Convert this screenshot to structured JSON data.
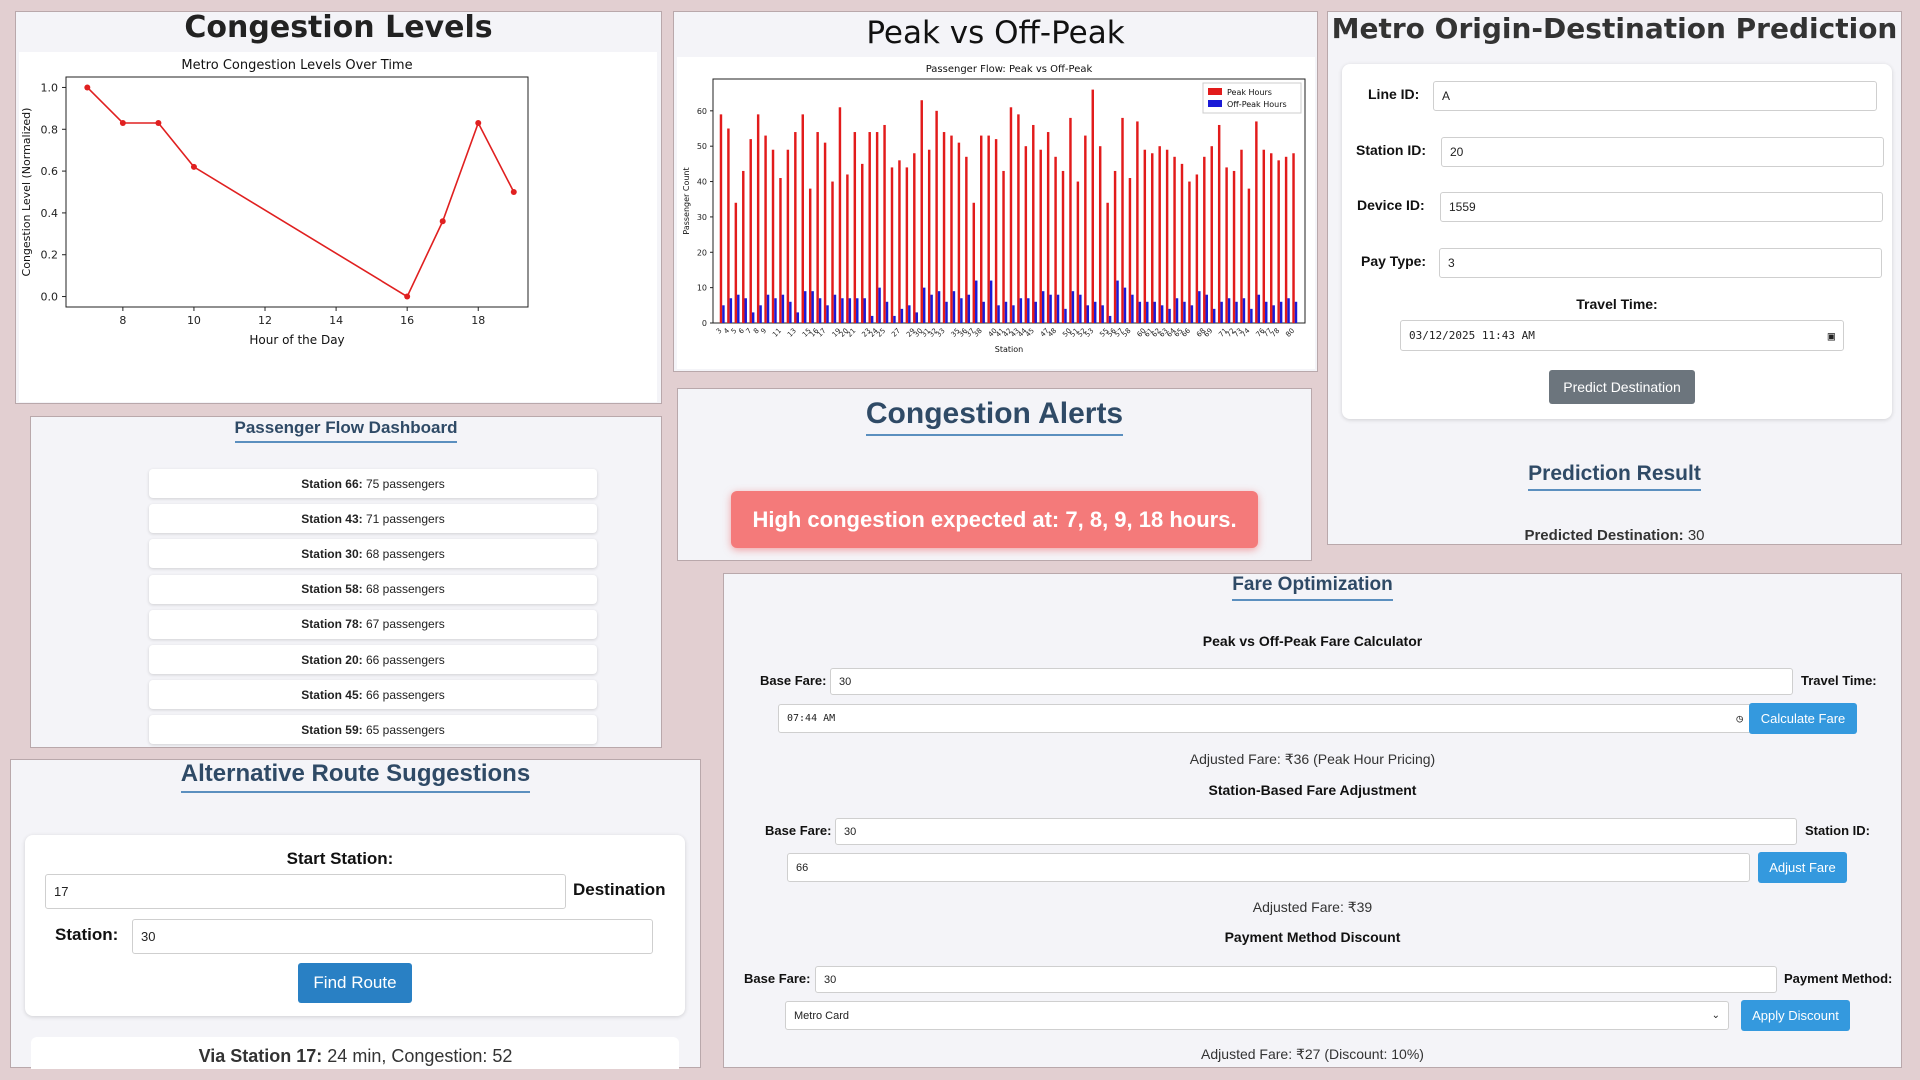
{
  "congestion_panel": {
    "title": "Congestion Levels"
  },
  "peak_panel": {
    "title": "Peak vs Off-Peak"
  },
  "od_panel": {
    "title": "Metro Origin-Destination Prediction",
    "line_label": "Line ID:",
    "line_value": "A",
    "station_label": "Station ID:",
    "station_value": "20",
    "device_label": "Device ID:",
    "device_value": "1559",
    "pay_label": "Pay Type:",
    "pay_value": "3",
    "time_label": "Travel Time:",
    "time_value": "03/12/2025  11:43  AM",
    "button": "Predict Destination",
    "result_title": "Prediction Result",
    "result_label": "Predicted Destination:",
    "result_value": " 30"
  },
  "dashboard": {
    "title": "Passenger Flow Dashboard",
    "rows": [
      {
        "station": "Station 66:",
        "count": " 75 passengers"
      },
      {
        "station": "Station 43:",
        "count": " 71 passengers"
      },
      {
        "station": "Station 30:",
        "count": " 68 passengers"
      },
      {
        "station": "Station 58:",
        "count": " 68 passengers"
      },
      {
        "station": "Station 78:",
        "count": " 67 passengers"
      },
      {
        "station": "Station 20:",
        "count": " 66 passengers"
      },
      {
        "station": "Station 45:",
        "count": " 66 passengers"
      },
      {
        "station": "Station 59:",
        "count": " 65 passengers"
      }
    ]
  },
  "alerts": {
    "title": "Congestion Alerts",
    "message": "High congestion expected at: 7, 8, 9, 18 hours.",
    "alert_color": "#f47a7a"
  },
  "routes": {
    "title": "Alternative Route Suggestions",
    "start_label": "Start Station:",
    "start_value": "17",
    "dest_label": "Destination",
    "station_label": "Station:",
    "dest_value": "30",
    "button": "Find Route",
    "result_label": "Via Station 17:",
    "result_value": " 24 min, Congestion: 52"
  },
  "fare": {
    "title": "Fare Optimization",
    "peak": {
      "heading": "Peak vs Off-Peak Fare Calculator",
      "base_label": "Base Fare:",
      "base_value": "30",
      "time_label": "Travel Time:",
      "time_value": "07:44  AM",
      "button": "Calculate Fare",
      "result": "Adjusted Fare: ₹36 (Peak Hour Pricing)"
    },
    "station": {
      "heading": "Station-Based Fare Adjustment",
      "base_label": "Base Fare:",
      "base_value": "30",
      "station_label": "Station ID:",
      "station_value": "66",
      "button": "Adjust Fare",
      "result": "Adjusted Fare: ₹39"
    },
    "payment": {
      "heading": "Payment Method Discount",
      "base_label": "Base Fare:",
      "base_value": "30",
      "method_label": "Payment Method:",
      "method_value": "Metro Card",
      "button": "Apply Discount",
      "result": "Adjusted Fare: ₹27 (Discount: 10%)"
    }
  },
  "chart_data": [
    {
      "type": "line",
      "title": "Metro Congestion Levels Over Time",
      "xlabel": "Hour of the Day",
      "ylabel": "Congestion Level (Normalized)",
      "x": [
        7,
        8,
        9,
        10,
        16,
        17,
        18,
        19
      ],
      "y": [
        1.0,
        0.83,
        0.83,
        0.62,
        0.0,
        0.36,
        0.83,
        0.5
      ],
      "xlim": [
        6.4,
        19.4
      ],
      "ylim": [
        -0.05,
        1.05
      ],
      "xticks": [
        8,
        10,
        12,
        14,
        16,
        18
      ],
      "yticks": [
        0.0,
        0.2,
        0.4,
        0.6,
        0.8,
        1.0
      ],
      "color": "#e02020"
    },
    {
      "type": "bar",
      "title": "Passenger Flow: Peak vs Off-Peak",
      "xlabel": "Station",
      "ylabel": "Passenger Count",
      "ylim": [
        0,
        69
      ],
      "yticks": [
        0,
        10,
        20,
        30,
        40,
        50,
        60
      ],
      "legend": "top-right",
      "categories": [
        "3",
        "4",
        "5",
        "6",
        "7",
        "8",
        "9",
        "10",
        "11",
        "12",
        "13",
        "14",
        "15",
        "16",
        "17",
        "18",
        "19",
        "20",
        "21",
        "22",
        "23",
        "24",
        "25",
        "26",
        "27",
        "28",
        "29",
        "30",
        "31",
        "32",
        "33",
        "34",
        "35",
        "36",
        "37",
        "38",
        "39",
        "40",
        "41",
        "42",
        "43",
        "44",
        "45",
        "46",
        "47",
        "48",
        "49",
        "50",
        "51",
        "52",
        "53",
        "54",
        "55",
        "56",
        "57",
        "58",
        "59",
        "60",
        "61",
        "62",
        "63",
        "64",
        "65",
        "66",
        "67",
        "68",
        "69",
        "70",
        "71",
        "72",
        "73",
        "74",
        "75",
        "76",
        "77",
        "78",
        "79",
        "80"
      ],
      "tick_labels": [
        "3",
        "4",
        "5",
        "6",
        "7",
        "8",
        "9",
        "11",
        "13",
        "15",
        "16",
        "17",
        "19",
        "20",
        "21",
        "23",
        "24",
        "25",
        "27",
        "29",
        "30",
        "31",
        "32",
        "33",
        "35",
        "36",
        "37",
        "38",
        "40",
        "41",
        "42",
        "43",
        "44",
        "45",
        "47",
        "48",
        "50",
        "51",
        "52",
        "53",
        "55",
        "56",
        "57",
        "58",
        "60",
        "61",
        "62",
        "63",
        "64",
        "65",
        "66",
        "68",
        "69",
        "71",
        "72",
        "73",
        "74",
        "76",
        "77",
        "78",
        "80"
      ],
      "series": [
        {
          "name": "Peak Hours",
          "color": "#e21b1b",
          "values": [
            59,
            55,
            34,
            43,
            52,
            59,
            53,
            49,
            41,
            49,
            54,
            59,
            38,
            54,
            51,
            40,
            61,
            42,
            54,
            45,
            54,
            54,
            56,
            44,
            46,
            44,
            48,
            63,
            49,
            60,
            54,
            53,
            51,
            47,
            34,
            53,
            53,
            52,
            43,
            61,
            59,
            50,
            56,
            49,
            54,
            47,
            43,
            58,
            40,
            53,
            66,
            50,
            34,
            43,
            58,
            41,
            57,
            49,
            48,
            50,
            49,
            47,
            45,
            40,
            42,
            47,
            50,
            56,
            44,
            43,
            49,
            38,
            57,
            49,
            48,
            46,
            47,
            48
          ],
          "note": "some bars overlap; read from chart"
        },
        {
          "name": "Off-Peak Hours",
          "color": "#1a1ad6",
          "values": [
            5,
            7,
            8,
            7,
            3,
            5,
            8,
            7,
            8,
            6,
            3,
            9,
            9,
            7,
            5,
            8,
            7,
            7,
            7,
            7,
            2,
            10,
            6,
            2,
            4,
            5,
            3,
            10,
            8,
            9,
            6,
            9,
            7,
            8,
            12,
            6,
            12,
            5,
            6,
            5,
            7,
            7,
            6,
            9,
            8,
            8,
            4,
            9,
            8,
            5,
            6,
            5,
            2,
            12,
            10,
            8,
            6,
            6,
            6,
            5,
            4,
            7,
            6,
            5,
            9,
            8,
            4,
            6,
            7,
            6,
            7,
            4,
            8,
            6,
            5,
            6,
            7,
            6
          ]
        }
      ]
    }
  ]
}
